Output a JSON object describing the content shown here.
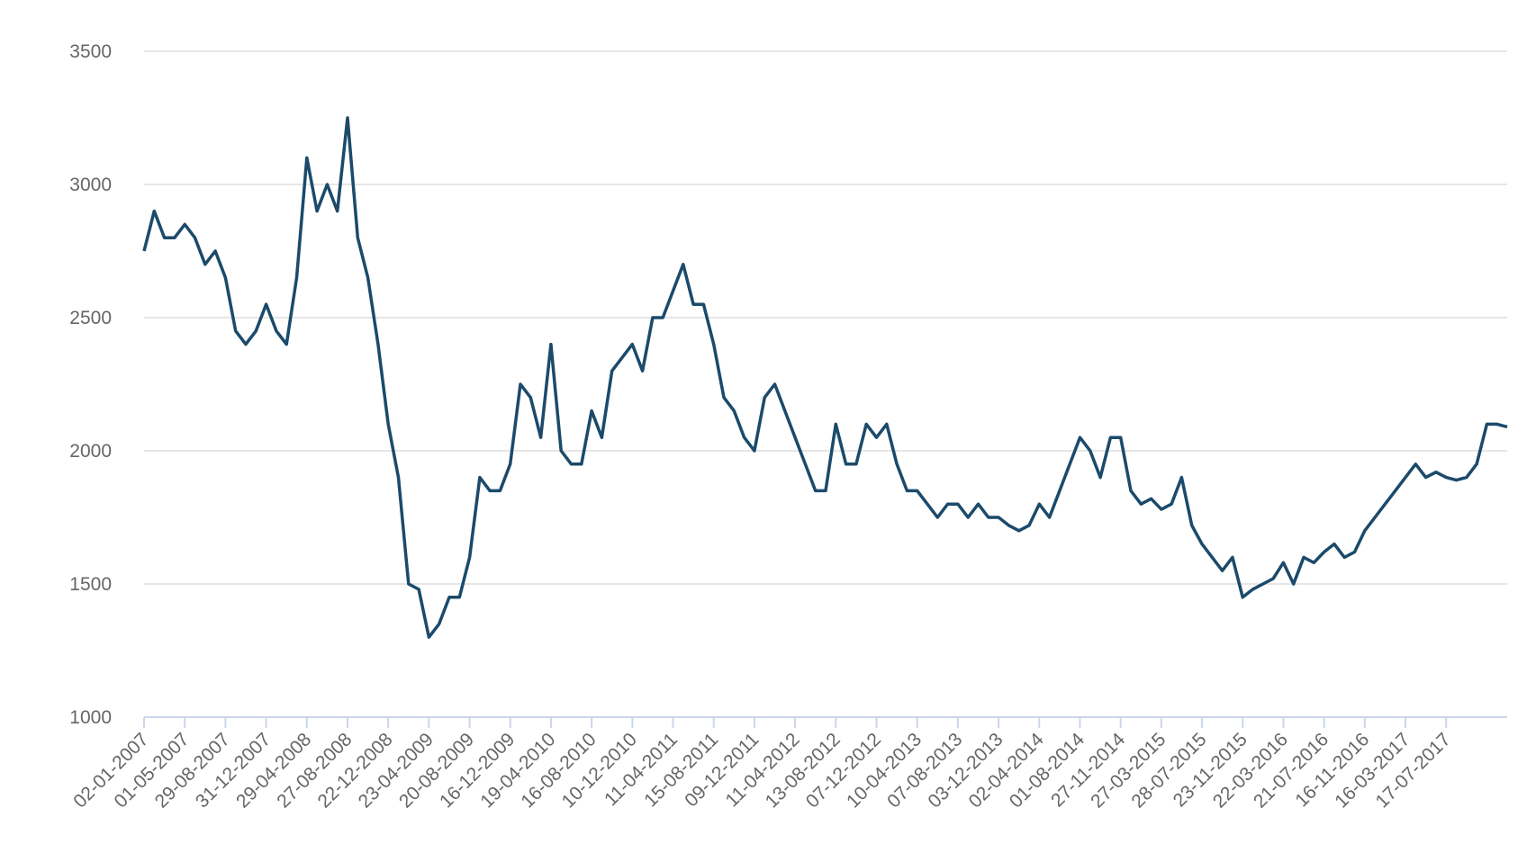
{
  "chart_data": {
    "type": "line",
    "categories": [
      "02-01-2007",
      null,
      null,
      null,
      "01-05-2007",
      null,
      null,
      null,
      "29-08-2007",
      null,
      null,
      null,
      "31-12-2007",
      null,
      null,
      null,
      "29-04-2008",
      null,
      null,
      null,
      "27-08-2008",
      null,
      null,
      null,
      "22-12-2008",
      null,
      null,
      null,
      "23-04-2009",
      null,
      null,
      null,
      "20-08-2009",
      null,
      null,
      null,
      "16-12-2009",
      null,
      null,
      null,
      "19-04-2010",
      null,
      null,
      null,
      "16-08-2010",
      null,
      null,
      null,
      "10-12-2010",
      null,
      null,
      null,
      "11-04-2011",
      null,
      null,
      null,
      "15-08-2011",
      null,
      null,
      null,
      "09-12-2011",
      null,
      null,
      null,
      "11-04-2012",
      null,
      null,
      null,
      "13-08-2012",
      null,
      null,
      null,
      "07-12-2012",
      null,
      null,
      null,
      "10-04-2013",
      null,
      null,
      null,
      "07-08-2013",
      null,
      null,
      null,
      "03-12-2013",
      null,
      null,
      null,
      "02-04-2014",
      null,
      null,
      null,
      "01-08-2014",
      null,
      null,
      null,
      "27-11-2014",
      null,
      null,
      null,
      "27-03-2015",
      null,
      null,
      null,
      "28-07-2015",
      null,
      null,
      null,
      "23-11-2015",
      null,
      null,
      null,
      "22-03-2016",
      null,
      null,
      null,
      "21-07-2016",
      null,
      null,
      null,
      "16-11-2016",
      null,
      null,
      null,
      "16-03-2017",
      null,
      null,
      null,
      "17-07-2017",
      null,
      null,
      null,
      null,
      null,
      null
    ],
    "values": [
      2750,
      2900,
      2800,
      2800,
      2850,
      2800,
      2700,
      2750,
      2650,
      2450,
      2400,
      2450,
      2550,
      2450,
      2400,
      2650,
      3100,
      2900,
      3000,
      2900,
      3250,
      2800,
      2650,
      2400,
      2100,
      1900,
      1500,
      1480,
      1300,
      1350,
      1450,
      1450,
      1600,
      1900,
      1850,
      1850,
      1950,
      2250,
      2200,
      2050,
      2400,
      2000,
      1950,
      1950,
      2150,
      2050,
      2300,
      2350,
      2400,
      2300,
      2500,
      2500,
      2600,
      2700,
      2550,
      2550,
      2400,
      2200,
      2150,
      2050,
      2000,
      2200,
      2250,
      2150,
      2050,
      1950,
      1850,
      1850,
      2100,
      1950,
      1950,
      2100,
      2050,
      2100,
      1950,
      1850,
      1850,
      1800,
      1750,
      1800,
      1800,
      1750,
      1800,
      1750,
      1750,
      1720,
      1700,
      1720,
      1800,
      1750,
      1850,
      1950,
      2050,
      2000,
      1900,
      2050,
      2050,
      1850,
      1800,
      1820,
      1780,
      1800,
      1900,
      1720,
      1650,
      1600,
      1550,
      1600,
      1450,
      1480,
      1500,
      1520,
      1580,
      1500,
      1600,
      1580,
      1620,
      1650,
      1600,
      1620,
      1700,
      1750,
      1800,
      1850,
      1900,
      1950,
      1900,
      1920,
      1900,
      1890,
      1900,
      1950,
      2100,
      2100,
      2090
    ],
    "color": "#1b4a6b",
    "ylim": [
      1000,
      3500
    ],
    "yticks": [
      1000,
      1500,
      2000,
      2500,
      3000,
      3500
    ],
    "grid": true
  }
}
